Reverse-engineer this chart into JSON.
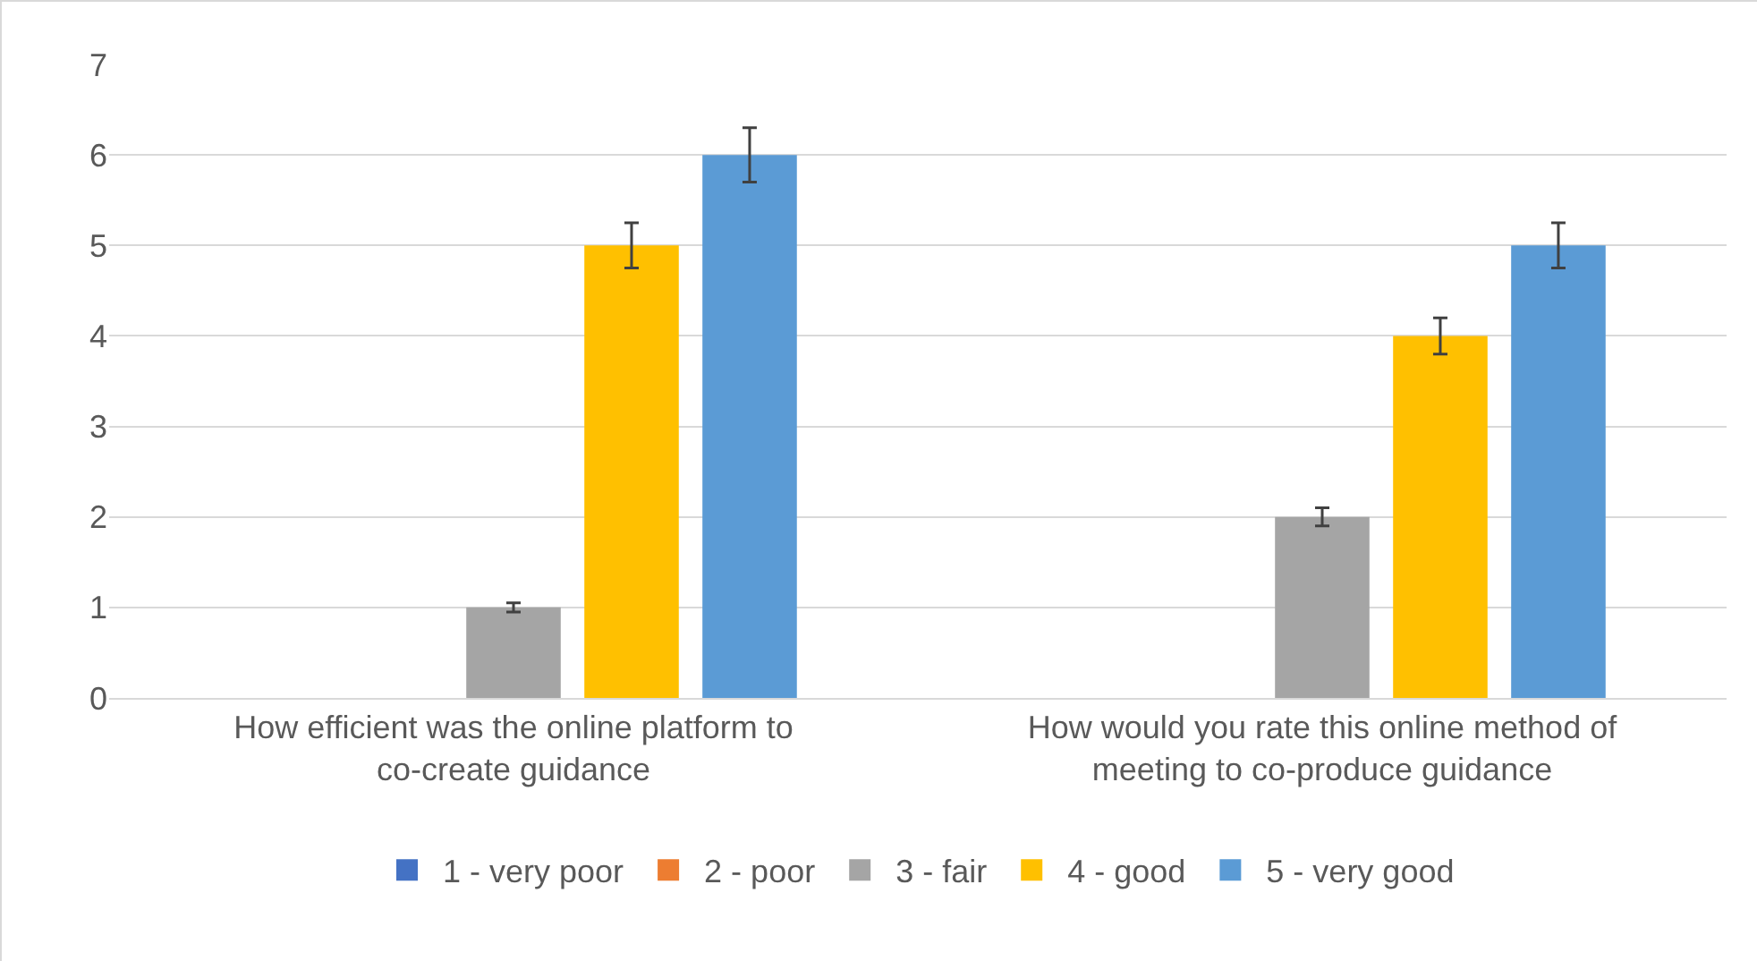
{
  "chart_data": {
    "type": "bar",
    "categories": [
      "How efficient was the online platform to co-create guidance",
      "How would you rate this online method of meeting to co-produce guidance"
    ],
    "series": [
      {
        "name": "1 - very poor",
        "color": "#4472c4",
        "values": [
          0,
          0
        ]
      },
      {
        "name": "2 - poor",
        "color": "#ed7d31",
        "values": [
          0,
          0
        ]
      },
      {
        "name": "3 - fair",
        "color": "#a5a5a5",
        "values": [
          1,
          2
        ],
        "errors": [
          0.05,
          0.1
        ]
      },
      {
        "name": "4 - good",
        "color": "#ffc000",
        "values": [
          5,
          4
        ],
        "errors": [
          0.25,
          0.2
        ]
      },
      {
        "name": "5 - very good",
        "color": "#5b9bd5",
        "values": [
          6,
          5
        ],
        "errors": [
          0.3,
          0.25
        ]
      }
    ],
    "ylim": [
      0,
      7
    ],
    "yticks": [
      0,
      1,
      2,
      3,
      4,
      5,
      6,
      7
    ],
    "grid": "y",
    "legend": "bottom"
  }
}
